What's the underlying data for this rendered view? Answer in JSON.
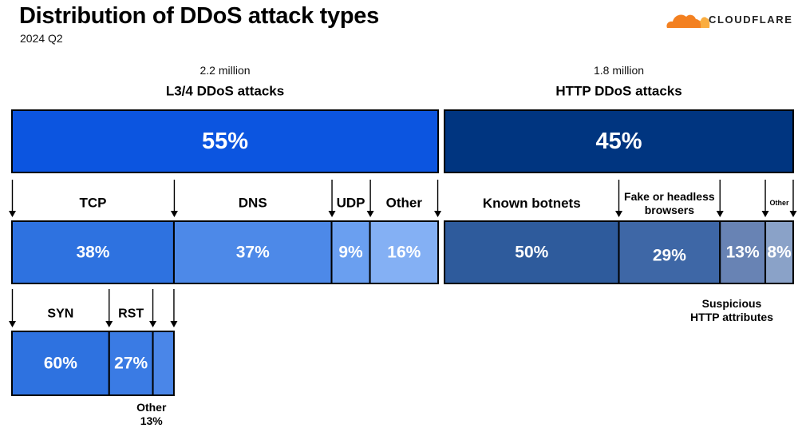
{
  "header": {
    "title": "Distribution of DDoS attack types",
    "subtitle": "2024 Q2",
    "brand": "CLOUDFLARE"
  },
  "colors": {
    "l34": "#0c55e0",
    "http": "#003580",
    "tcp": "#2e72e0",
    "dns": "#4d89e8",
    "udp": "#6a9ff0",
    "l34_other": "#84b0f4",
    "known_botnets": "#2e5b9c",
    "fake_browsers": "#3e67a6",
    "suspicious_http": "#6883b4",
    "http_other": "#8aa2c8",
    "syn": "#2e72e0",
    "rst": "#3a7be4",
    "tcp_other": "#4a86e8",
    "logo_orange": "#f38020",
    "logo_light": "#faad3f"
  },
  "chart_data": {
    "type": "bar",
    "orientation": "horizontal-stacked",
    "title": "Distribution of DDoS attack types",
    "subtitle": "2024 Q2",
    "groups": [
      {
        "name": "L3/4 DDoS attacks",
        "count": "2.2 million",
        "share": 55,
        "share_label": "55%",
        "breakdown": [
          {
            "name": "TCP",
            "value": 38,
            "label": "38%",
            "breakdown": [
              {
                "name": "SYN",
                "value": 60,
                "label": "60%"
              },
              {
                "name": "RST",
                "value": 27,
                "label": "27%"
              },
              {
                "name": "Other",
                "value": 13,
                "label": "13%"
              }
            ]
          },
          {
            "name": "DNS",
            "value": 37,
            "label": "37%"
          },
          {
            "name": "UDP",
            "value": 9,
            "label": "9%"
          },
          {
            "name": "Other",
            "value": 16,
            "label": "16%"
          }
        ]
      },
      {
        "name": "HTTP DDoS attacks",
        "count": "1.8 million",
        "share": 45,
        "share_label": "45%",
        "breakdown": [
          {
            "name": "Known botnets",
            "value": 50,
            "label": "50%"
          },
          {
            "name": "Fake or headless browsers",
            "value": 29,
            "label": "29%"
          },
          {
            "name": "Suspicious HTTP attributes",
            "value": 13,
            "label": "13%"
          },
          {
            "name": "Other",
            "value": 8,
            "label": "8%"
          }
        ]
      }
    ]
  }
}
